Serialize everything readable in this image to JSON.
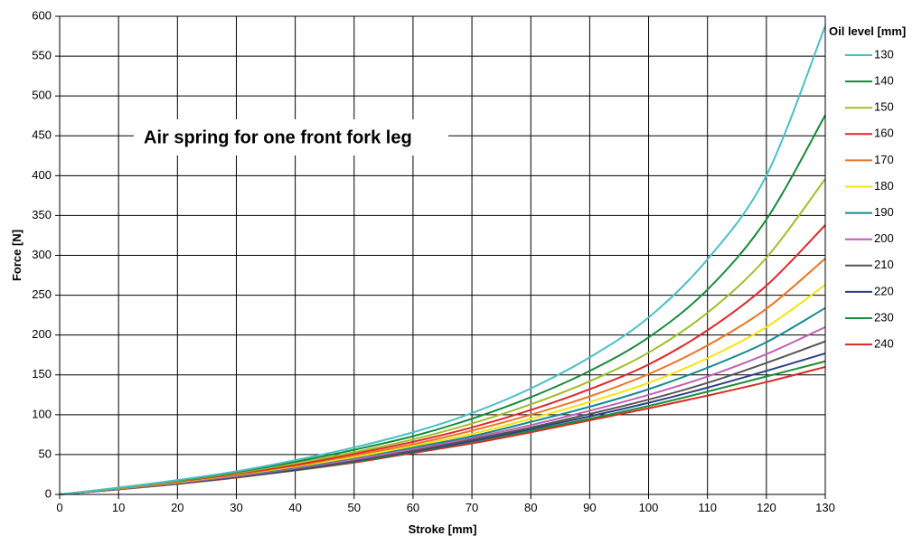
{
  "chart_data": {
    "type": "line",
    "title": "Air spring for one front fork leg",
    "xlabel": "Stroke [mm]",
    "ylabel": "Force [N]",
    "xlim": [
      0,
      130
    ],
    "ylim": [
      0,
      600
    ],
    "xticks": [
      0,
      10,
      20,
      30,
      40,
      50,
      60,
      70,
      80,
      90,
      100,
      110,
      120,
      130
    ],
    "yticks": [
      0,
      50,
      100,
      150,
      200,
      250,
      300,
      350,
      400,
      450,
      500,
      550,
      600
    ],
    "grid": true,
    "legend_title": "Oil level [mm]",
    "legend_position": "right",
    "x": [
      0,
      10,
      20,
      30,
      40,
      50,
      60,
      70,
      80,
      90,
      100,
      110,
      120,
      130
    ],
    "series": [
      {
        "name": "130",
        "color": "#4bbfc6",
        "values": [
          0,
          8.5,
          18,
          29,
          43,
          59,
          78,
          102,
          133,
          172,
          222,
          295,
          400,
          588
        ]
      },
      {
        "name": "140",
        "color": "#178a3c",
        "values": [
          0,
          8.3,
          17.5,
          28,
          41,
          56,
          73,
          95,
          122,
          155,
          197,
          257,
          345,
          476
        ]
      },
      {
        "name": "150",
        "color": "#9dbf2a",
        "values": [
          0,
          8,
          17,
          27,
          39,
          53,
          69,
          89,
          113,
          142,
          178,
          228,
          297,
          396
        ]
      },
      {
        "name": "160",
        "color": "#e0262b",
        "values": [
          0,
          7.8,
          16.5,
          26,
          37,
          51,
          66,
          84,
          106,
          132,
          163,
          206,
          262,
          338
        ]
      },
      {
        "name": "170",
        "color": "#ec7424",
        "values": [
          0,
          7.6,
          16,
          25,
          36,
          49,
          63,
          80,
          100,
          123,
          151,
          187,
          233,
          296
        ]
      },
      {
        "name": "180",
        "color": "#f5e40f",
        "values": [
          0,
          7.4,
          15.5,
          24.5,
          35,
          47,
          61,
          76,
          95,
          116,
          140,
          171,
          210,
          263
        ]
      },
      {
        "name": "190",
        "color": "#168a91",
        "values": [
          0,
          7.2,
          15,
          24,
          34,
          46,
          59,
          73,
          91,
          110,
          132,
          159,
          191,
          234
        ]
      },
      {
        "name": "200",
        "color": "#c25fb0",
        "values": [
          0,
          7,
          14.5,
          23,
          33,
          44,
          57,
          71,
          87,
          105,
          125,
          148,
          176,
          210
        ]
      },
      {
        "name": "210",
        "color": "#555555",
        "values": [
          0,
          6.8,
          14,
          22.5,
          32,
          43,
          55,
          69,
          84,
          101,
          119,
          140,
          165,
          192
        ]
      },
      {
        "name": "220",
        "color": "#2e3e8c",
        "values": [
          0,
          6.6,
          13.8,
          22,
          31,
          42,
          54,
          67,
          82,
          98,
          115,
          134,
          155,
          177
        ]
      },
      {
        "name": "230",
        "color": "#1c8f3a",
        "values": [
          0,
          6.5,
          13.5,
          21.5,
          30.5,
          41,
          53,
          66,
          80,
          95,
          111,
          129,
          148,
          167
        ]
      },
      {
        "name": "240",
        "color": "#d92a24",
        "values": [
          0,
          6.3,
          13,
          21,
          30,
          40,
          52,
          64,
          78,
          93,
          108,
          124,
          141,
          160
        ]
      }
    ]
  }
}
